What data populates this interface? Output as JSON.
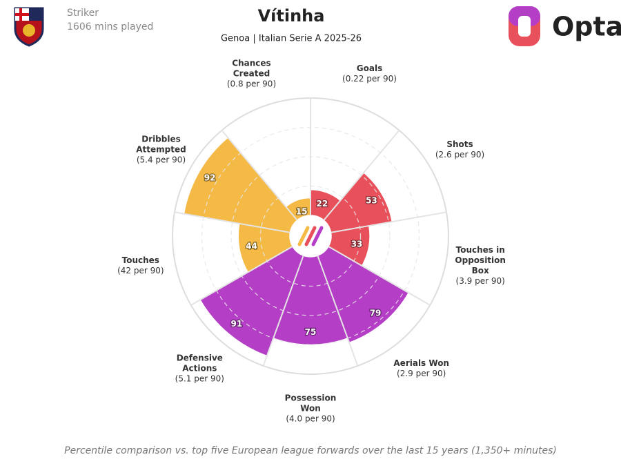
{
  "chart_data": {
    "type": "pizza",
    "title": "Vítinha",
    "subtitle": "Genoa | Italian Serie A 2025-26",
    "player_role": "Striker",
    "minutes_label": "1606 mins played",
    "brand": "Opta",
    "footnote": "Percentile comparison vs. top five European league forwards over the last 15 years (1,350+ minutes)",
    "categories": [
      "Goals",
      "Shots",
      "Touches in Opposition Box",
      "Aerials Won",
      "Possession Won",
      "Defensive Actions",
      "Touches",
      "Dribbles Attempted",
      "Chances Created"
    ],
    "per90_labels": [
      "(0.22 per 90)",
      "(2.6 per 90)",
      "(3.9 per 90)",
      "(2.9 per 90)",
      "(4.0 per 90)",
      "(5.1 per 90)",
      "(42 per 90)",
      "(5.4 per 90)",
      "(0.8 per 90)"
    ],
    "values": [
      22,
      53,
      33,
      79,
      75,
      91,
      44,
      92,
      15
    ],
    "colors": [
      "#e8505b",
      "#e8505b",
      "#e8505b",
      "#b53ec6",
      "#b53ec6",
      "#b53ec6",
      "#f5b946",
      "#f5b946",
      "#f5b946"
    ],
    "rlim": [
      0,
      100
    ],
    "rgrid": [
      25,
      50,
      75
    ]
  }
}
